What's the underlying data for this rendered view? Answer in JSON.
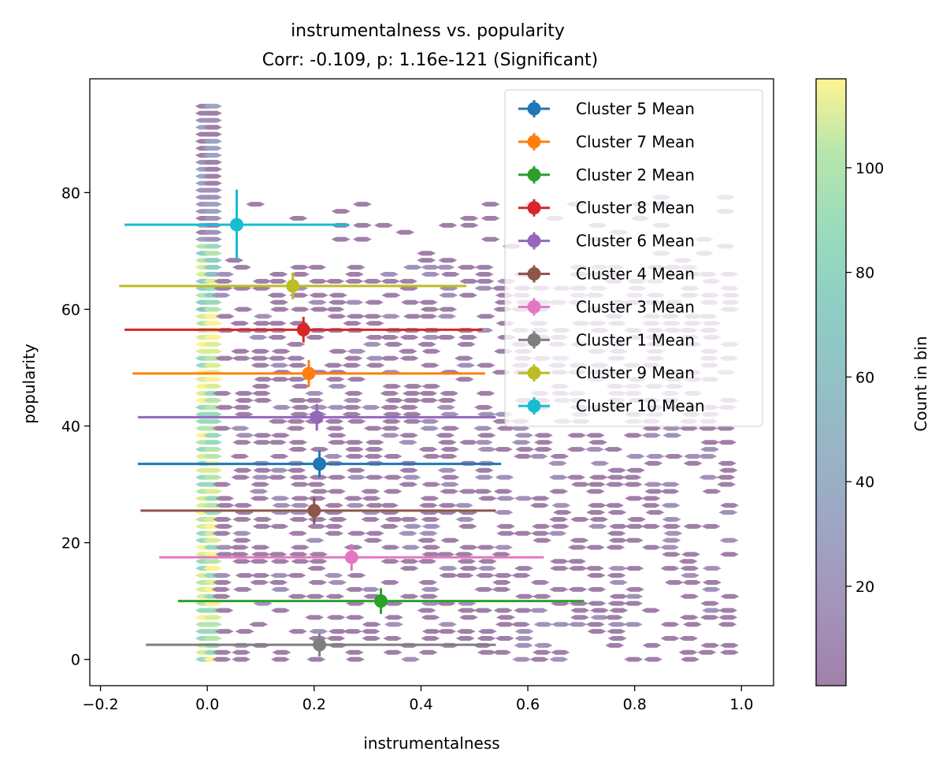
{
  "chart_data": {
    "type": "scatter",
    "title": "instrumentalness vs. popularity",
    "subtitle": "Corr: -0.109, p: 1.16e-121 (Significant)",
    "xlabel": "instrumentalness",
    "ylabel": "popularity",
    "xlim": [
      -0.22,
      1.06
    ],
    "ylim": [
      -4.5,
      99.5
    ],
    "xticks": [
      -0.2,
      0.0,
      0.2,
      0.4,
      0.6,
      0.8,
      1.0
    ],
    "xtick_labels": [
      "−0.2",
      "0.0",
      "0.2",
      "0.4",
      "0.6",
      "0.8",
      "1.0"
    ],
    "yticks": [
      0,
      20,
      40,
      60,
      80
    ],
    "ytick_labels": [
      "0",
      "20",
      "40",
      "60",
      "80"
    ],
    "grid": false,
    "legend_position": "top-right",
    "series": [
      {
        "name": "Cluster 5 Mean",
        "color": "#1f77b4",
        "x": 0.21,
        "y": 33.5,
        "xerr_low": -0.13,
        "xerr_high": 0.55,
        "yerr": 2.3
      },
      {
        "name": "Cluster 7 Mean",
        "color": "#ff7f0e",
        "x": 0.19,
        "y": 49.0,
        "xerr_low": -0.14,
        "xerr_high": 0.52,
        "yerr": 2.3
      },
      {
        "name": "Cluster 2 Mean",
        "color": "#2ca02c",
        "x": 0.325,
        "y": 10.0,
        "xerr_low": -0.055,
        "xerr_high": 0.705,
        "yerr": 2.2
      },
      {
        "name": "Cluster 8 Mean",
        "color": "#d62728",
        "x": 0.18,
        "y": 56.5,
        "xerr_low": -0.155,
        "xerr_high": 0.515,
        "yerr": 2.2
      },
      {
        "name": "Cluster 6 Mean",
        "color": "#9467bd",
        "x": 0.205,
        "y": 41.5,
        "xerr_low": -0.13,
        "xerr_high": 0.54,
        "yerr": 2.3
      },
      {
        "name": "Cluster 4 Mean",
        "color": "#8c564b",
        "x": 0.2,
        "y": 25.5,
        "xerr_low": -0.125,
        "xerr_high": 0.54,
        "yerr": 2.3
      },
      {
        "name": "Cluster 3 Mean",
        "color": "#e377c2",
        "x": 0.27,
        "y": 17.5,
        "xerr_low": -0.09,
        "xerr_high": 0.63,
        "yerr": 2.3
      },
      {
        "name": "Cluster 1 Mean",
        "color": "#7f7f7f",
        "x": 0.21,
        "y": 2.5,
        "xerr_low": -0.115,
        "xerr_high": 0.54,
        "yerr": 2.0
      },
      {
        "name": "Cluster 9 Mean",
        "color": "#bcbd22",
        "x": 0.16,
        "y": 64.0,
        "xerr_low": -0.165,
        "xerr_high": 0.485,
        "yerr": 2.3
      },
      {
        "name": "Cluster 10 Mean",
        "color": "#17becf",
        "x": 0.055,
        "y": 74.5,
        "xerr_low": -0.155,
        "xerr_high": 0.265,
        "yerr": 6.0
      }
    ],
    "hexbin": {
      "description_counts_range": [
        1,
        117
      ],
      "colormap": "viridis (alpha 0.5)"
    },
    "colorbar": {
      "label": "Count in bin",
      "ticks": [
        20,
        40,
        60,
        80,
        100
      ],
      "tick_labels": [
        "20",
        "40",
        "60",
        "80",
        "100"
      ],
      "range": [
        1,
        117
      ]
    }
  }
}
